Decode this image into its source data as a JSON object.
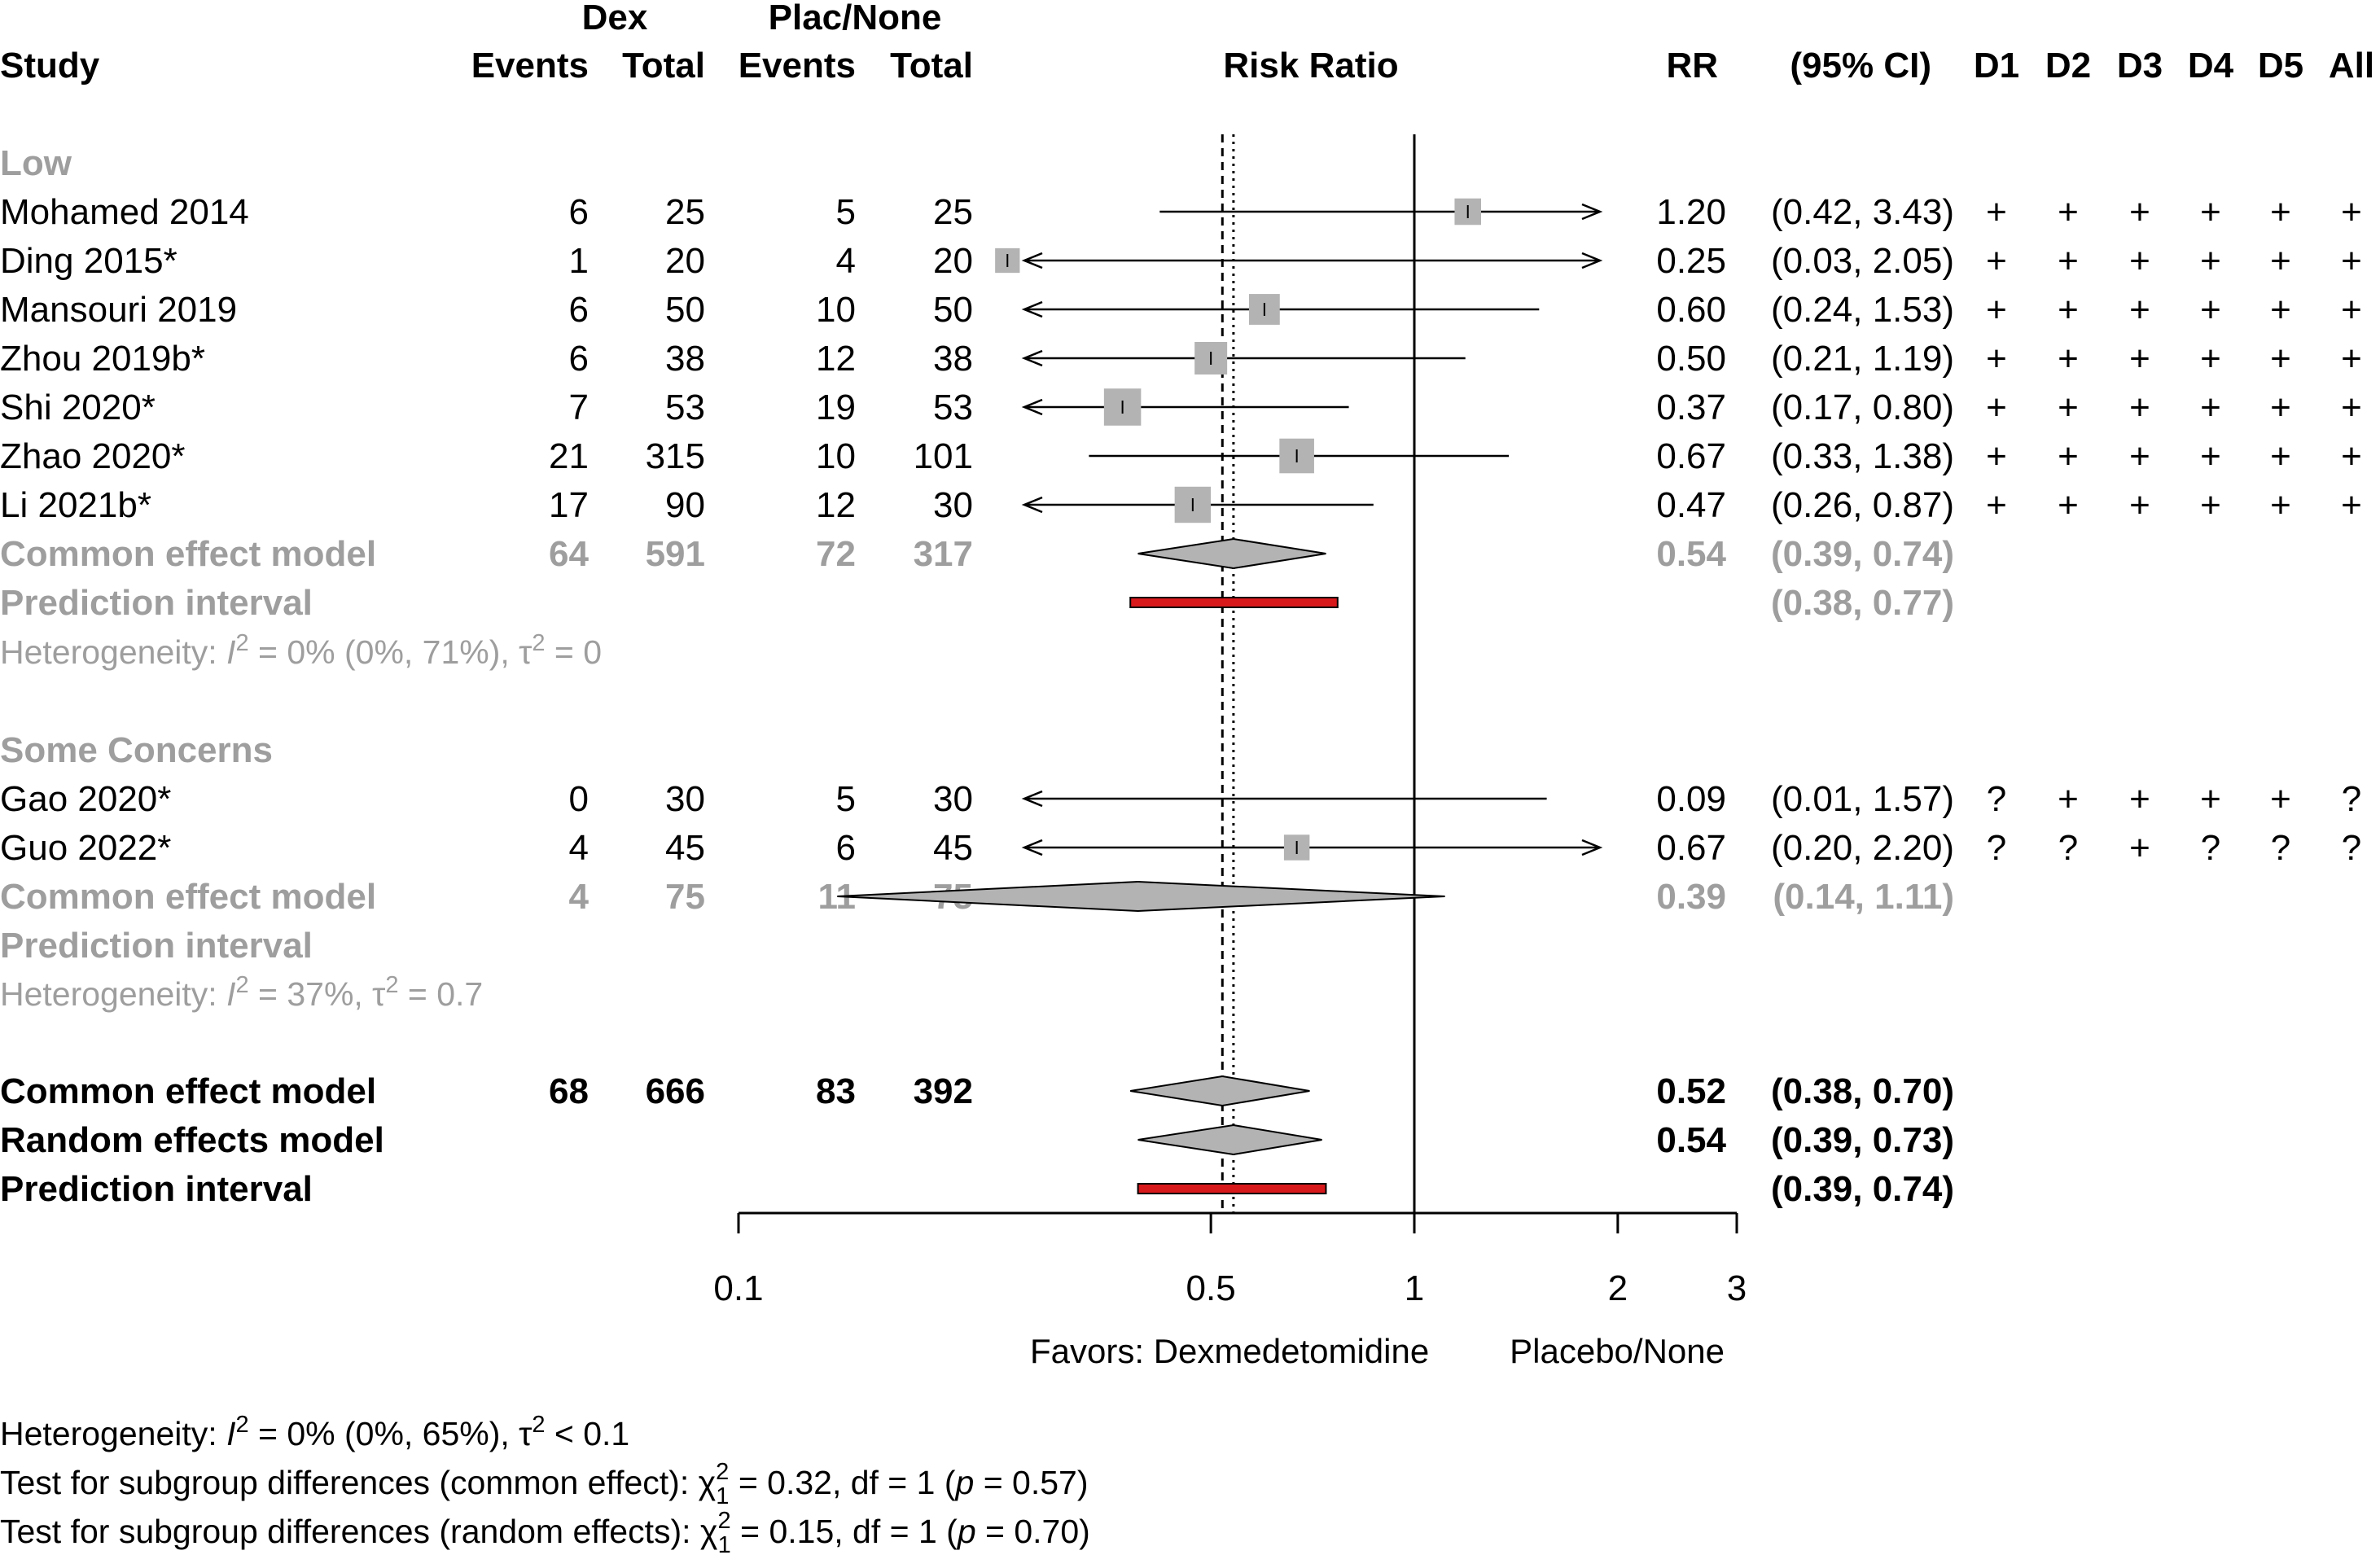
{
  "header": {
    "study": "Study",
    "group1": "Dex",
    "group2": "Plac/None",
    "events": "Events",
    "total": "Total",
    "risk_ratio": "Risk Ratio",
    "rr": "RR",
    "ci": "(95% CI)",
    "domains": [
      "D1",
      "D2",
      "D3",
      "D4",
      "D5",
      "All"
    ]
  },
  "subgroups": [
    {
      "name": "Low",
      "studies": [
        {
          "study": "Mohamed 2014",
          "e1": "6",
          "n1": "25",
          "e2": "5",
          "n2": "25",
          "rr_text": "1.20",
          "ci_text": "(0.42, 3.43)",
          "rob": [
            "+",
            "+",
            "+",
            "+",
            "+",
            "+"
          ]
        },
        {
          "study": "Ding 2015*",
          "e1": "1",
          "n1": "20",
          "e2": "4",
          "n2": "20",
          "rr_text": "0.25",
          "ci_text": "(0.03, 2.05)",
          "rob": [
            "+",
            "+",
            "+",
            "+",
            "+",
            "+"
          ]
        },
        {
          "study": "Mansouri 2019",
          "e1": "6",
          "n1": "50",
          "e2": "10",
          "n2": "50",
          "rr_text": "0.60",
          "ci_text": "(0.24, 1.53)",
          "rob": [
            "+",
            "+",
            "+",
            "+",
            "+",
            "+"
          ]
        },
        {
          "study": "Zhou 2019b*",
          "e1": "6",
          "n1": "38",
          "e2": "12",
          "n2": "38",
          "rr_text": "0.50",
          "ci_text": "(0.21, 1.19)",
          "rob": [
            "+",
            "+",
            "+",
            "+",
            "+",
            "+"
          ]
        },
        {
          "study": "Shi 2020*",
          "e1": "7",
          "n1": "53",
          "e2": "19",
          "n2": "53",
          "rr_text": "0.37",
          "ci_text": "(0.17, 0.80)",
          "rob": [
            "+",
            "+",
            "+",
            "+",
            "+",
            "+"
          ]
        },
        {
          "study": "Zhao 2020*",
          "e1": "21",
          "n1": "315",
          "e2": "10",
          "n2": "101",
          "rr_text": "0.67",
          "ci_text": "(0.33, 1.38)",
          "rob": [
            "+",
            "+",
            "+",
            "+",
            "+",
            "+"
          ]
        },
        {
          "study": "Li 2021b*",
          "e1": "17",
          "n1": "90",
          "e2": "12",
          "n2": "30",
          "rr_text": "0.47",
          "ci_text": "(0.26, 0.87)",
          "rob": [
            "+",
            "+",
            "+",
            "+",
            "+",
            "+"
          ]
        }
      ],
      "common": {
        "label": "Common effect model",
        "e1": "64",
        "n1": "591",
        "e2": "72",
        "n2": "317",
        "rr_text": "0.54",
        "ci_text": "(0.39, 0.74)"
      },
      "prediction": {
        "label": "Prediction interval",
        "ci_text": "(0.38, 0.77)"
      },
      "heterogeneity": {
        "prefix": "Heterogeneity: ",
        "symbol": "I",
        "sup": "2",
        "rest": " = 0% (0%, 71%), τ",
        "sup2": "2",
        "tail": " = 0"
      }
    },
    {
      "name": "Some Concerns",
      "studies": [
        {
          "study": "Gao 2020*",
          "e1": "0",
          "n1": "30",
          "e2": "5",
          "n2": "30",
          "rr_text": "0.09",
          "ci_text": "(0.01, 1.57)",
          "rob": [
            "?",
            "+",
            "+",
            "+",
            "+",
            "?"
          ]
        },
        {
          "study": "Guo 2022*",
          "e1": "4",
          "n1": "45",
          "e2": "6",
          "n2": "45",
          "rr_text": "0.67",
          "ci_text": "(0.20, 2.20)",
          "rob": [
            "?",
            "?",
            "+",
            "?",
            "?",
            "?"
          ]
        }
      ],
      "common": {
        "label": "Common effect model",
        "e1": "4",
        "n1": "75",
        "e2": "11",
        "n2": "75",
        "rr_text": "0.39",
        "ci_text": "(0.14, 1.11)"
      },
      "prediction": {
        "label": "Prediction interval",
        "ci_text": ""
      },
      "heterogeneity": {
        "prefix": "Heterogeneity: ",
        "symbol": "I",
        "sup": "2",
        "rest": " = 37%, τ",
        "sup2": "2",
        "tail": " = 0.7"
      }
    }
  ],
  "overall": {
    "common": {
      "label": "Common effect model",
      "e1": "68",
      "n1": "666",
      "e2": "83",
      "n2": "392",
      "rr_text": "0.52",
      "ci_text": "(0.38, 0.70)"
    },
    "random": {
      "label": "Random effects model",
      "rr_text": "0.54",
      "ci_text": "(0.39, 0.73)"
    },
    "prediction": {
      "label": "Prediction interval",
      "ci_text": "(0.39, 0.74)"
    }
  },
  "favors": {
    "left": "Favors: Dexmedetomidine",
    "right": "Placebo/None"
  },
  "footer": {
    "het": {
      "prefix": "Heterogeneity: ",
      "symbol": "I",
      "sup": "2",
      "rest": " = 0% (0%, 65%), τ",
      "sup2": "2",
      "tail": " < 0.1"
    },
    "test_common": {
      "prefix": "Test for subgroup differences (common effect): χ",
      "sup": "2",
      "sub": "1",
      "mid": " = 0.32, df = 1 (",
      "p": "p",
      "tail": " = 0.57)"
    },
    "test_random": {
      "prefix": "Test for subgroup differences (random effects): χ",
      "sup": "2",
      "sub": "1",
      "mid": " = 0.15, df = 1 (",
      "p": "p",
      "tail": " = 0.70)"
    }
  },
  "colors": {
    "square": "#b3b3b3",
    "diamond": "#b3b3b3",
    "prediction": "#d7191c",
    "subgroup_text": "#9e9e9e"
  },
  "chart_data": {
    "type": "forest",
    "x_scale": "log",
    "xlim": [
      0.1,
      3
    ],
    "xticks": [
      0.1,
      0.5,
      1,
      2,
      3
    ],
    "xtick_labels": [
      "0.1",
      "0.5",
      "1",
      "2",
      "3"
    ],
    "reference_line": 1,
    "common_effect_line": 0.52,
    "random_effects_line": 0.54,
    "studies": [
      {
        "study": "Mohamed 2014",
        "rr": 1.2,
        "lower": 0.42,
        "upper": 3.43,
        "weight": 0.07
      },
      {
        "study": "Ding 2015*",
        "rr": 0.25,
        "lower": 0.03,
        "upper": 2.05,
        "weight": 0.05
      },
      {
        "study": "Mansouri 2019",
        "rr": 0.6,
        "lower": 0.24,
        "upper": 1.53,
        "weight": 0.13
      },
      {
        "study": "Zhou 2019b*",
        "rr": 0.5,
        "lower": 0.21,
        "upper": 1.19,
        "weight": 0.16
      },
      {
        "study": "Shi 2020*",
        "rr": 0.37,
        "lower": 0.17,
        "upper": 0.8,
        "weight": 0.25
      },
      {
        "study": "Zhao 2020*",
        "rr": 0.67,
        "lower": 0.33,
        "upper": 1.38,
        "weight": 0.2
      },
      {
        "study": "Li 2021b*",
        "rr": 0.47,
        "lower": 0.26,
        "upper": 0.87,
        "weight": 0.23
      },
      {
        "study": "Gao 2020*",
        "rr": 0.09,
        "lower": 0.01,
        "upper": 1.57,
        "weight": 0.0
      },
      {
        "study": "Guo 2022*",
        "rr": 0.67,
        "lower": 0.2,
        "upper": 2.2,
        "weight": 0.06
      }
    ],
    "subgroup_summaries": [
      {
        "label": "Common effect model (Low)",
        "rr": 0.54,
        "lower": 0.39,
        "upper": 0.74,
        "prediction": [
          0.38,
          0.77
        ]
      },
      {
        "label": "Common effect model (Some Concerns)",
        "rr": 0.39,
        "lower": 0.14,
        "upper": 1.11
      }
    ],
    "overall_summaries": [
      {
        "label": "Common effect model",
        "rr": 0.52,
        "lower": 0.38,
        "upper": 0.7
      },
      {
        "label": "Random effects model",
        "rr": 0.54,
        "lower": 0.39,
        "upper": 0.73,
        "prediction": [
          0.39,
          0.74
        ]
      }
    ]
  }
}
